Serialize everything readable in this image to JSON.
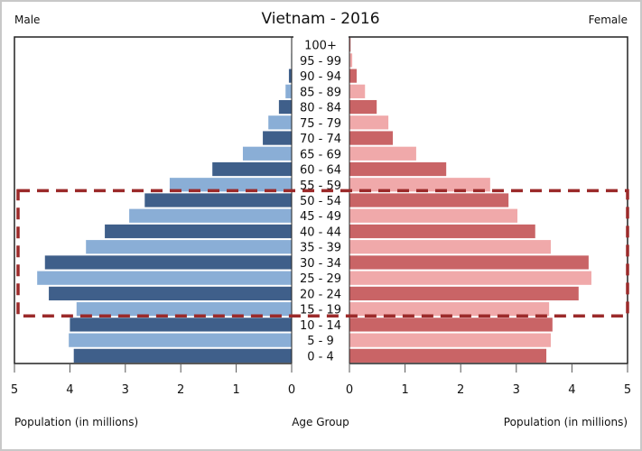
{
  "chart_data": {
    "type": "bar",
    "subtype": "population-pyramid",
    "title": "Vietnam - 2016",
    "left_label": "Male",
    "right_label": "Female",
    "xlabel_left": "Population (in millions)",
    "xlabel_center": "Age Group",
    "xlabel_right": "Population (in millions)",
    "xlim": [
      0,
      5
    ],
    "xticks": [
      "0",
      "1",
      "2",
      "3",
      "4",
      "5"
    ],
    "categories": [
      "100+",
      "95 - 99",
      "90 - 94",
      "85 - 89",
      "80 - 84",
      "75 - 79",
      "70 - 74",
      "65 - 69",
      "60 - 64",
      "55 - 59",
      "50 - 54",
      "45 - 49",
      "40 - 44",
      "35 - 39",
      "30 - 34",
      "25 - 29",
      "20 - 24",
      "15 - 19",
      "10 - 14",
      "5 - 9",
      "0 - 4"
    ],
    "series": [
      {
        "name": "Male",
        "values": [
          0.0,
          0.01,
          0.05,
          0.11,
          0.23,
          0.42,
          0.52,
          0.88,
          1.43,
          2.2,
          2.65,
          2.93,
          3.37,
          3.71,
          4.45,
          4.59,
          4.38,
          3.88,
          4.0,
          4.02,
          3.93
        ]
      },
      {
        "name": "Female",
        "values": [
          0.02,
          0.05,
          0.13,
          0.28,
          0.49,
          0.7,
          0.78,
          1.2,
          1.74,
          2.53,
          2.86,
          3.02,
          3.34,
          3.62,
          4.3,
          4.35,
          4.12,
          3.59,
          3.65,
          3.62,
          3.54
        ]
      }
    ],
    "highlight": {
      "from": "15 - 19",
      "to": "50 - 54",
      "style": "dashed"
    },
    "colors": {
      "male_dark": "#3f5f8a",
      "male_light": "#8aaed6",
      "female_dark": "#c96466",
      "female_light": "#f0a9aa",
      "highlight": "#9b2a2a"
    }
  }
}
